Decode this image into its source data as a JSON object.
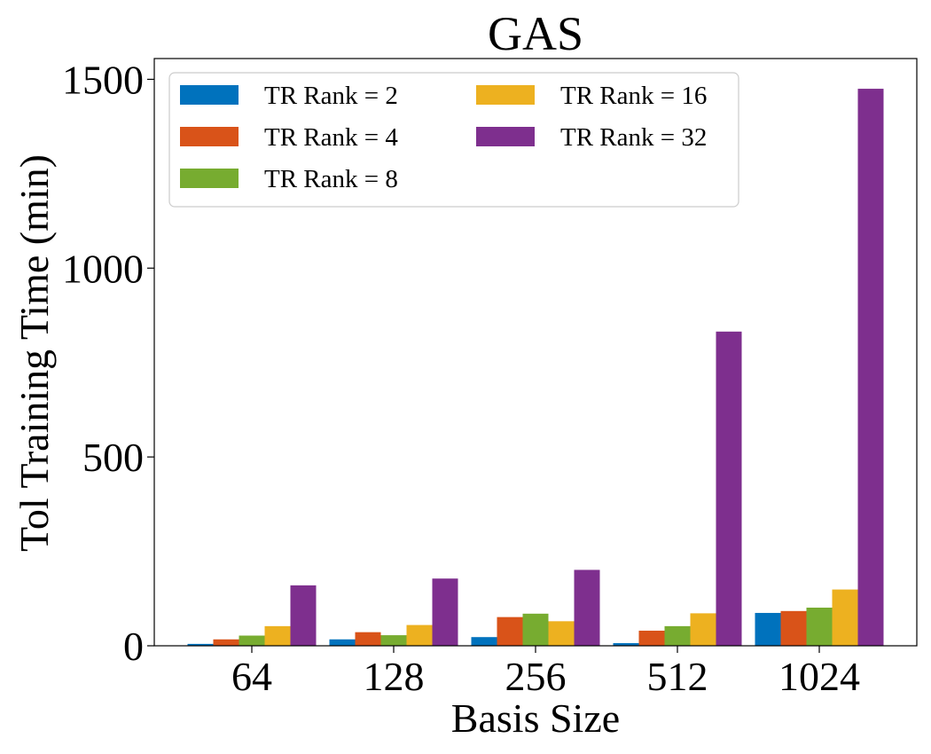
{
  "chart_data": {
    "type": "bar",
    "title": "GAS",
    "xlabel": "Basis Size",
    "ylabel": "Tol Training Time (min)",
    "categories": [
      "64",
      "128",
      "256",
      "512",
      "1024"
    ],
    "ylim": [
      0,
      1555
    ],
    "yticks": [
      0,
      500,
      1000,
      1500
    ],
    "legend_position": "top-left",
    "legend_columns": 2,
    "series": [
      {
        "name": "TR Rank = 2",
        "color": "#0072BD",
        "values": [
          5,
          17,
          23,
          7,
          87
        ]
      },
      {
        "name": "TR Rank = 4",
        "color": "#D95319",
        "values": [
          17,
          36,
          76,
          40,
          92
        ]
      },
      {
        "name": "TR Rank = 8",
        "color": "#77AC30",
        "values": [
          27,
          28,
          85,
          52,
          101
        ]
      },
      {
        "name": "TR Rank = 16",
        "color": "#EDB120",
        "values": [
          52,
          55,
          65,
          86,
          149
        ]
      },
      {
        "name": "TR Rank = 32",
        "color": "#7E2F8E",
        "values": [
          160,
          178,
          201,
          832,
          1475
        ]
      }
    ]
  }
}
